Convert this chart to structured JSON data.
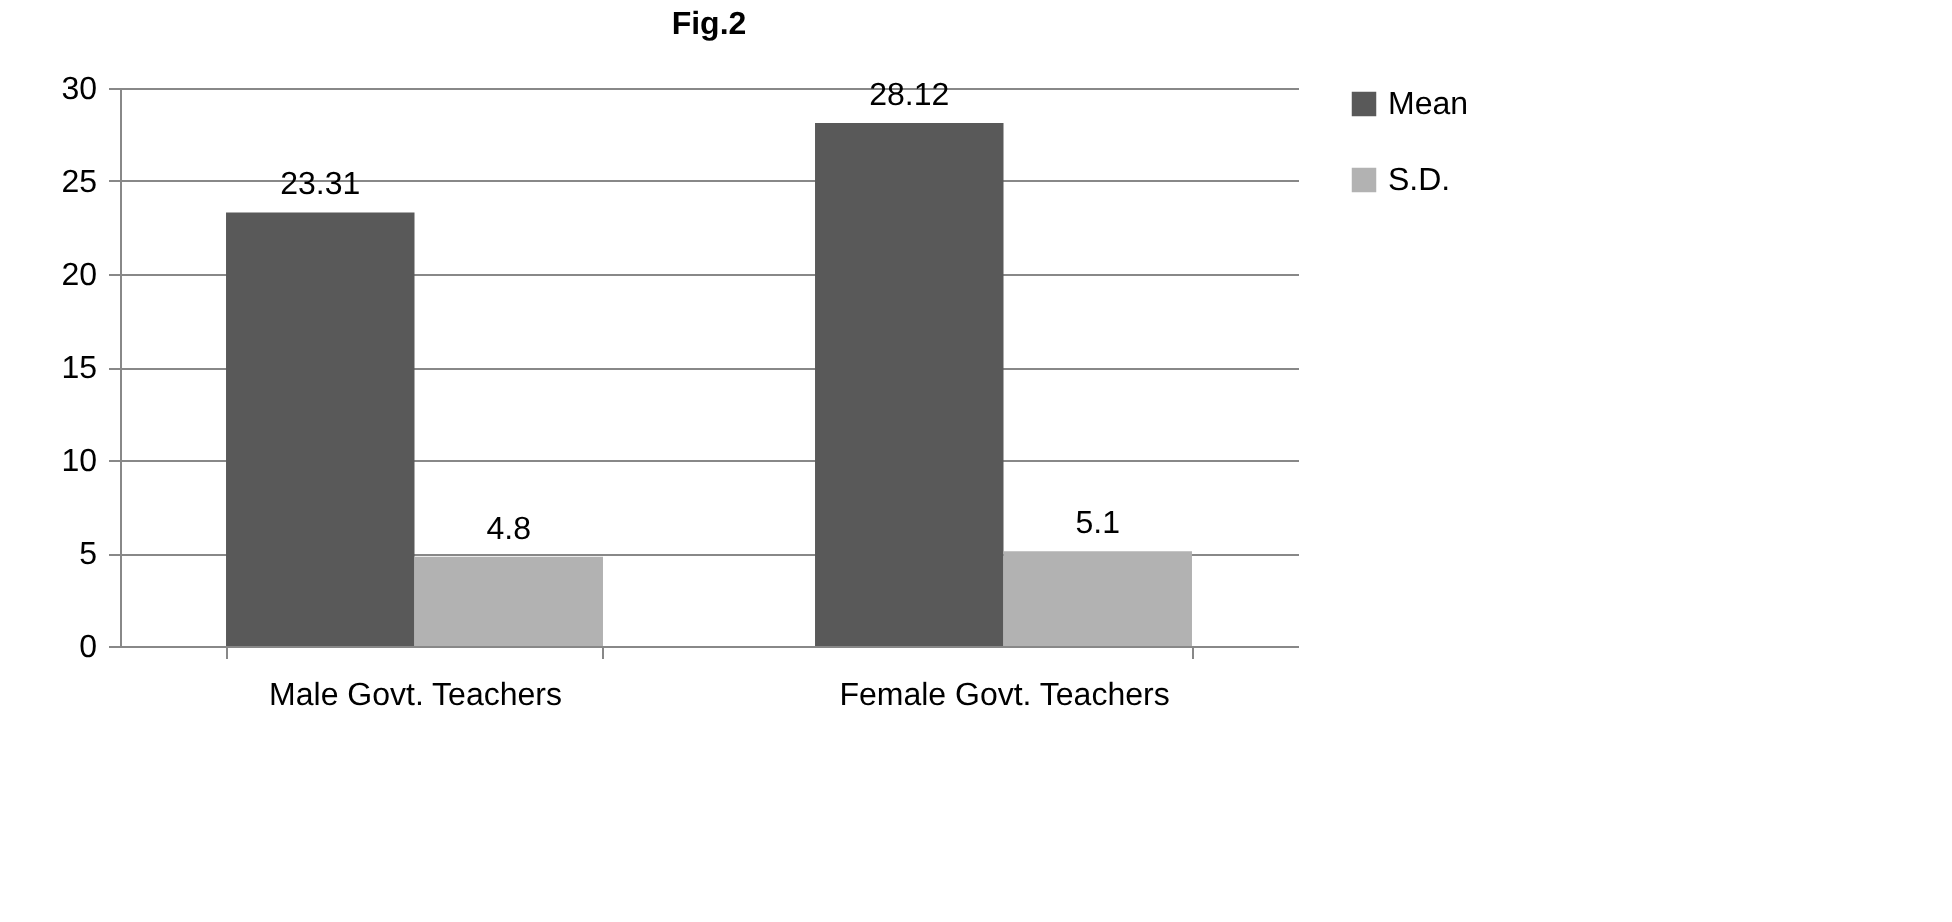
{
  "chart_data": {
    "type": "bar",
    "title": "Fig.2",
    "categories": [
      "Male Govt. Teachers",
      "Female Govt. Teachers"
    ],
    "series": [
      {
        "name": "Mean",
        "color": "#595959",
        "values": [
          23.31,
          28.12
        ]
      },
      {
        "name": "S.D.",
        "color": "#b2b2b2",
        "values": [
          4.8,
          5.1
        ]
      }
    ],
    "ylim": [
      0,
      30
    ],
    "yticks": [
      0,
      5,
      10,
      15,
      20,
      25,
      30
    ],
    "grid": "y",
    "legend": "right",
    "data_labels": true
  }
}
